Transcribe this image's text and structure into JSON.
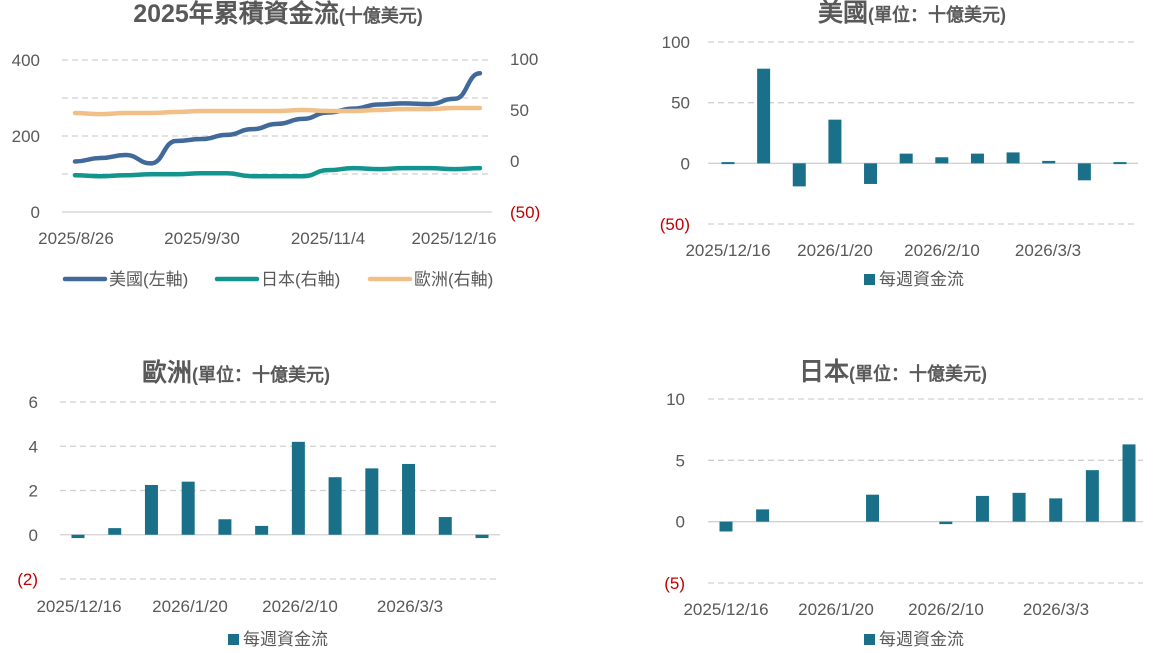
{
  "chart_data": [
    {
      "type": "line",
      "title": "2025年累積資金流",
      "subtitle": "(十億美元)",
      "x_ticks": [
        "2025/8/26",
        "2025/9/30",
        "2025/11/4",
        "2025/12/16"
      ],
      "left_axis": {
        "ylim": [
          0,
          400
        ],
        "ticks": [
          "0",
          "200",
          "400"
        ]
      },
      "right_axis": {
        "ylim": [
          -50,
          100
        ],
        "ticks": [
          "(50)",
          "0",
          "50",
          "100"
        ]
      },
      "grid": true,
      "legend_position": "bottom",
      "series": [
        {
          "name": "美國(左軸)",
          "axis": "left",
          "color": "#41699a",
          "x": [
            "2025/8/26",
            "2025/9/2",
            "2025/9/9",
            "2025/9/16",
            "2025/9/23",
            "2025/9/30",
            "2025/10/7",
            "2025/10/14",
            "2025/10/21",
            "2025/10/28",
            "2025/11/4",
            "2025/11/11",
            "2025/11/18",
            "2025/11/25",
            "2025/12/2",
            "2025/12/9",
            "2025/12/16"
          ],
          "values": [
            133,
            142,
            150,
            128,
            187,
            192,
            203,
            218,
            232,
            245,
            262,
            272,
            283,
            286,
            284,
            298,
            365
          ]
        },
        {
          "name": "日本(右軸)",
          "axis": "right",
          "color": "#12948f",
          "x": [
            "2025/8/26",
            "2025/9/2",
            "2025/9/9",
            "2025/9/16",
            "2025/9/23",
            "2025/9/30",
            "2025/10/7",
            "2025/10/14",
            "2025/10/21",
            "2025/10/28",
            "2025/11/4",
            "2025/11/11",
            "2025/11/18",
            "2025/11/25",
            "2025/12/2",
            "2025/12/9",
            "2025/12/16"
          ],
          "values": [
            -14,
            -15,
            -14,
            -13,
            -13,
            -12,
            -12,
            -15,
            -15,
            -15,
            -9,
            -7,
            -8,
            -7,
            -7,
            -8,
            -7
          ]
        },
        {
          "name": "歐洲(右軸)",
          "axis": "right",
          "color": "#f0c088",
          "x": [
            "2025/8/26",
            "2025/9/2",
            "2025/9/9",
            "2025/9/16",
            "2025/9/23",
            "2025/9/30",
            "2025/10/7",
            "2025/10/14",
            "2025/10/21",
            "2025/10/28",
            "2025/11/4",
            "2025/11/11",
            "2025/11/18",
            "2025/11/25",
            "2025/12/2",
            "2025/12/9",
            "2025/12/16"
          ],
          "values": [
            47,
            46,
            47,
            47,
            48,
            49,
            49,
            49,
            49,
            50,
            49,
            49,
            50,
            51,
            51,
            52,
            52
          ]
        }
      ]
    },
    {
      "type": "bar",
      "title": "美國",
      "subtitle": "(單位：十億美元)",
      "x_ticks": [
        "2025/12/16",
        "2026/1/20",
        "2026/2/10",
        "2026/3/3"
      ],
      "ylim": [
        -50,
        100
      ],
      "y_ticks": [
        "(50)",
        "0",
        "50",
        "100"
      ],
      "grid": true,
      "legend_position": "bottom",
      "series": [
        {
          "name": "每週資金流",
          "color": "#1a7089",
          "values": [
            1,
            78,
            -19,
            36,
            -17,
            8,
            5,
            8,
            9,
            2,
            -14,
            1
          ]
        }
      ]
    },
    {
      "type": "bar",
      "title": "歐洲",
      "subtitle": "(單位：十億美元)",
      "x_ticks": [
        "2025/12/16",
        "2026/1/20",
        "2026/2/10",
        "2026/3/3"
      ],
      "ylim": [
        -2,
        6
      ],
      "y_ticks": [
        "(2)",
        "0",
        "2",
        "4",
        "6"
      ],
      "grid": true,
      "legend_position": "bottom",
      "series": [
        {
          "name": "每週資金流",
          "color": "#1a7089",
          "values": [
            -0.15,
            0.3,
            2.25,
            2.4,
            0.7,
            0.4,
            4.2,
            2.6,
            3.0,
            3.2,
            0.8,
            -0.15
          ]
        }
      ]
    },
    {
      "type": "bar",
      "title": "日本",
      "subtitle": "(單位：十億美元)",
      "x_ticks": [
        "2025/12/16",
        "2026/1/20",
        "2026/2/10",
        "2026/3/3"
      ],
      "ylim": [
        -5,
        10
      ],
      "y_ticks": [
        "(5)",
        "0",
        "5",
        "10"
      ],
      "grid": true,
      "legend_position": "bottom",
      "series": [
        {
          "name": "每週資金流",
          "color": "#1a7089",
          "values": [
            -0.8,
            1.0,
            0,
            0,
            2.2,
            0,
            -0.2,
            2.1,
            2.35,
            1.9,
            4.2,
            6.3
          ]
        }
      ]
    }
  ]
}
